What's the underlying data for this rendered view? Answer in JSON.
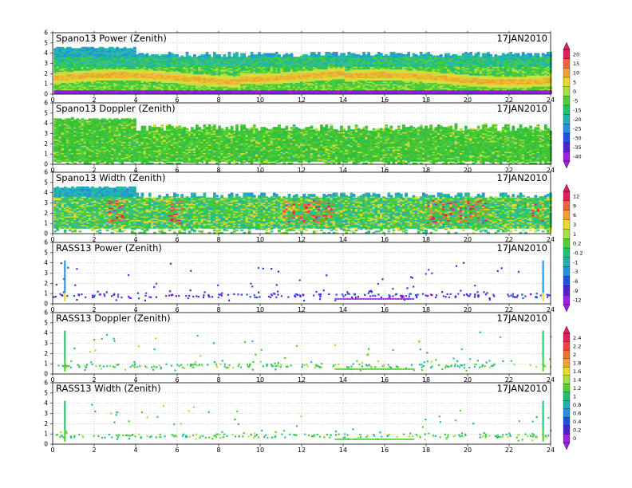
{
  "date": "17JAN2010",
  "chart_data": [
    {
      "type": "heatmap",
      "title": "Spano13 Power (Zenith)",
      "xlim": [
        0,
        24
      ],
      "ylim": [
        0,
        6
      ],
      "xticks": [
        0,
        2,
        4,
        6,
        8,
        10,
        12,
        14,
        16,
        18,
        20,
        22,
        24
      ],
      "yticks": [
        0,
        1,
        2,
        3,
        4,
        5,
        6
      ],
      "grid": true,
      "colorbar": 0,
      "field": "power_spano"
    },
    {
      "type": "heatmap",
      "title": "Spano13 Doppler (Zenith)",
      "xlim": [
        0,
        24
      ],
      "ylim": [
        0,
        6
      ],
      "xticks": [
        0,
        2,
        4,
        6,
        8,
        10,
        12,
        14,
        16,
        18,
        20,
        22,
        24
      ],
      "yticks": [
        0,
        1,
        2,
        3,
        4,
        5,
        6
      ],
      "grid": true,
      "colorbar": 0,
      "field": "doppler_spano"
    },
    {
      "type": "heatmap",
      "title": "Spano13 Width (Zenith)",
      "xlim": [
        0,
        24
      ],
      "ylim": [
        0,
        6
      ],
      "xticks": [
        0,
        2,
        4,
        6,
        8,
        10,
        12,
        14,
        16,
        18,
        20,
        22,
        24
      ],
      "yticks": [
        0,
        1,
        2,
        3,
        4,
        5,
        6
      ],
      "grid": true,
      "colorbar": 1,
      "field": "width_spano"
    },
    {
      "type": "heatmap",
      "title": "RASS13 Power (Zenith)",
      "xlim": [
        0,
        24
      ],
      "ylim": [
        0,
        6
      ],
      "xticks": [
        0,
        2,
        4,
        6,
        8,
        10,
        12,
        14,
        16,
        18,
        20,
        22,
        24
      ],
      "yticks": [
        0,
        1,
        2,
        3,
        4,
        5,
        6
      ],
      "grid": true,
      "colorbar": 1,
      "field": "power_rass"
    },
    {
      "type": "heatmap",
      "title": "RASS13 Doppler (Zenith)",
      "xlim": [
        0,
        24
      ],
      "ylim": [
        0,
        6
      ],
      "xticks": [
        0,
        2,
        4,
        6,
        8,
        10,
        12,
        14,
        16,
        18,
        20,
        22,
        24
      ],
      "yticks": [
        0,
        1,
        2,
        3,
        4,
        5,
        6
      ],
      "grid": true,
      "colorbar": 2,
      "field": "doppler_rass"
    },
    {
      "type": "heatmap",
      "title": "RASS13 Width (Zenith)",
      "xlim": [
        0,
        24
      ],
      "ylim": [
        0,
        6
      ],
      "xticks": [
        0,
        2,
        4,
        6,
        8,
        10,
        12,
        14,
        16,
        18,
        20,
        22,
        24
      ],
      "yticks": [
        0,
        1,
        2,
        3,
        4,
        5,
        6
      ],
      "grid": true,
      "colorbar": 2,
      "field": "width_rass"
    }
  ],
  "colorbars": [
    {
      "labels": [
        "20",
        "15",
        "10",
        "5",
        "0",
        "-5",
        "-15",
        "-20",
        "-25",
        "-30",
        "-35",
        "-40"
      ],
      "colors": [
        "#e0205a",
        "#f06040",
        "#f0a030",
        "#e8d830",
        "#a8e040",
        "#50d030",
        "#20c070",
        "#20b0b0",
        "#2090e0",
        "#2050e0",
        "#5020d0",
        "#a020e0"
      ]
    },
    {
      "labels": [
        "12",
        "9",
        "6",
        "3",
        "1",
        "0.2",
        "-0.2",
        "-1",
        "-3",
        "-6",
        "-9",
        "-12"
      ],
      "colors": [
        "#e0205a",
        "#f06040",
        "#f0a030",
        "#e8d830",
        "#a8e040",
        "#50d030",
        "#20c070",
        "#20b0b0",
        "#2090e0",
        "#2050e0",
        "#5020d0",
        "#a020e0"
      ]
    },
    {
      "labels": [
        "2.4",
        "2.2",
        "2",
        "1.8",
        "1.6",
        "1.4",
        "1.2",
        "1",
        "0.8",
        "0.6",
        "0.4",
        "0.2",
        "0"
      ],
      "colors": [
        "#e0205a",
        "#f04040",
        "#f07030",
        "#f0a030",
        "#e8d830",
        "#a8e040",
        "#50d030",
        "#20c070",
        "#20b0b0",
        "#2090e0",
        "#2050e0",
        "#5020d0",
        "#a020e0"
      ]
    }
  ]
}
